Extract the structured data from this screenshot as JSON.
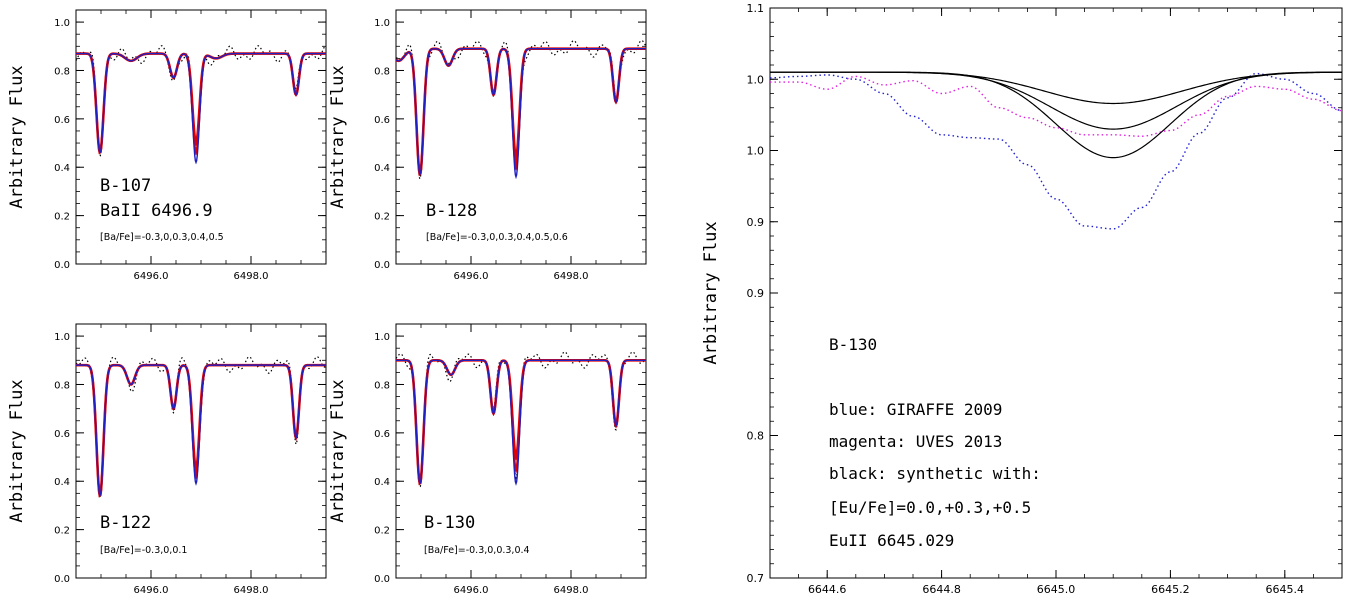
{
  "chart_data": [
    {
      "type": "line",
      "panel": "B-107",
      "ylabel": "Arbitrary Flux",
      "xlim": [
        6494.5,
        6499.5
      ],
      "ylim": [
        0.0,
        1.05
      ],
      "xticks": [
        "6496.0",
        "6498.0"
      ],
      "yticks": [
        "0.0",
        "0.2",
        "0.4",
        "0.6",
        "0.8",
        "1.0"
      ],
      "annotations": [
        "B-107",
        "BaII 6496.9",
        "[Ba/Fe]=-0.3,0,0.3,0.4,0.5"
      ],
      "continuum": 0.87,
      "lines": [
        {
          "center": 6494.98,
          "depth": 0.41,
          "sigma": 0.07
        },
        {
          "center": 6495.6,
          "depth": 0.03,
          "sigma": 0.12
        },
        {
          "center": 6496.45,
          "depth": 0.1,
          "sigma": 0.07
        },
        {
          "center": 6496.9,
          "depth_min": 0.37,
          "depth_max": 0.45,
          "sigma": 0.07
        },
        {
          "center": 6497.3,
          "depth": 0.02,
          "sigma": 0.12
        },
        {
          "center": 6498.9,
          "depth": 0.17,
          "sigma": 0.06
        }
      ],
      "series": [
        {
          "name": "observed",
          "color": "#000000",
          "style": "dotted"
        },
        {
          "name": "synthetic",
          "color": "#e00000",
          "style": "solid"
        },
        {
          "name": "synthetic",
          "color": "#2020c0",
          "style": "solid"
        }
      ]
    },
    {
      "type": "line",
      "panel": "B-128",
      "ylabel": "Arbitrary Flux",
      "xlim": [
        6494.5,
        6499.5
      ],
      "ylim": [
        0.0,
        1.05
      ],
      "xticks": [
        "6496.0",
        "6498.0"
      ],
      "yticks": [
        "0.0",
        "0.2",
        "0.4",
        "0.6",
        "0.8",
        "1.0"
      ],
      "annotations": [
        "B-128",
        "[Ba/Fe]=-0.3,0,0.3,0.4,0.5,0.6"
      ],
      "continuum": 0.89,
      "lines": [
        {
          "center": 6494.55,
          "depth": 0.05,
          "sigma": 0.12
        },
        {
          "center": 6494.98,
          "depth": 0.52,
          "sigma": 0.07
        },
        {
          "center": 6495.55,
          "depth": 0.07,
          "sigma": 0.08
        },
        {
          "center": 6496.45,
          "depth": 0.19,
          "sigma": 0.06
        },
        {
          "center": 6496.9,
          "depth_min": 0.45,
          "depth_max": 0.53,
          "sigma": 0.07
        },
        {
          "center": 6498.9,
          "depth": 0.22,
          "sigma": 0.06
        }
      ],
      "series": [
        {
          "name": "observed",
          "color": "#000000",
          "style": "dotted"
        },
        {
          "name": "synthetic",
          "color": "#e00000",
          "style": "solid"
        },
        {
          "name": "synthetic",
          "color": "#2020c0",
          "style": "solid"
        }
      ]
    },
    {
      "type": "line",
      "panel": "B-122",
      "ylabel": "Arbitrary Flux",
      "xlim": [
        6494.5,
        6499.5
      ],
      "ylim": [
        0.0,
        1.05
      ],
      "xticks": [
        "6496.0",
        "6498.0"
      ],
      "yticks": [
        "0.0",
        "0.2",
        "0.4",
        "0.6",
        "0.8",
        "1.0"
      ],
      "annotations": [
        "B-122",
        "[Ba/Fe]=-0.3,0,0.1"
      ],
      "continuum": 0.88,
      "lines": [
        {
          "center": 6494.98,
          "depth": 0.54,
          "sigma": 0.07
        },
        {
          "center": 6495.6,
          "depth": 0.08,
          "sigma": 0.08
        },
        {
          "center": 6496.45,
          "depth": 0.18,
          "sigma": 0.06
        },
        {
          "center": 6496.9,
          "depth_min": 0.43,
          "depth_max": 0.49,
          "sigma": 0.07
        },
        {
          "center": 6498.9,
          "depth": 0.3,
          "sigma": 0.06
        }
      ],
      "series": [
        {
          "name": "observed",
          "color": "#000000",
          "style": "dotted"
        },
        {
          "name": "synthetic",
          "color": "#e00000",
          "style": "solid"
        },
        {
          "name": "synthetic",
          "color": "#2020c0",
          "style": "solid"
        }
      ]
    },
    {
      "type": "line",
      "panel": "B-130",
      "ylabel": "Arbitrary Flux",
      "xlim": [
        6494.5,
        6499.5
      ],
      "ylim": [
        0.0,
        1.05
      ],
      "xticks": [
        "6496.0",
        "6498.0"
      ],
      "yticks": [
        "0.0",
        "0.2",
        "0.4",
        "0.6",
        "0.8",
        "1.0"
      ],
      "annotations": [
        "B-130",
        "[Ba/Fe]=-0.3,0,0.3,0.4"
      ],
      "continuum": 0.9,
      "lines": [
        {
          "center": 6494.98,
          "depth": 0.51,
          "sigma": 0.07
        },
        {
          "center": 6495.6,
          "depth": 0.06,
          "sigma": 0.08
        },
        {
          "center": 6496.45,
          "depth": 0.22,
          "sigma": 0.06
        },
        {
          "center": 6496.9,
          "depth_min": 0.4,
          "depth_max": 0.51,
          "sigma": 0.07
        },
        {
          "center": 6498.9,
          "depth": 0.27,
          "sigma": 0.06
        }
      ],
      "series": [
        {
          "name": "observed",
          "color": "#000000",
          "style": "dotted"
        },
        {
          "name": "synthetic",
          "color": "#e00000",
          "style": "solid"
        },
        {
          "name": "synthetic",
          "color": "#2020c0",
          "style": "solid"
        }
      ]
    },
    {
      "type": "line",
      "panel": "B-130",
      "ylabel": "Arbitrary Flux",
      "xlim": [
        6644.5,
        6645.5
      ],
      "ylim": [
        0.7,
        1.1
      ],
      "xticks": [
        "6644.6",
        "6644.8",
        "6645.0",
        "6645.2",
        "6645.4"
      ],
      "yticks": [
        {
          "value": 0.7,
          "label": "0.7"
        },
        {
          "value": 0.8,
          "label": "0.8"
        },
        {
          "value": 0.9,
          "label": "0.9"
        },
        {
          "value": 0.95,
          "label": "0.9"
        },
        {
          "value": 1.0,
          "label": "1.0"
        },
        {
          "value": 1.05,
          "label": "1.0"
        },
        {
          "value": 1.1,
          "label": "1.1"
        }
      ],
      "annotations": [
        "B-130",
        "blue: GIRAFFE 2009",
        "magenta: UVES 2013",
        "black: synthetic with:",
        "[Eu/Fe]=0.0,+0.3,+0.5",
        "EuII 6645.029"
      ],
      "series": [
        {
          "name": "GIRAFFE 2009",
          "color": "#2020d0",
          "style": "dotted",
          "x": [
            6644.5,
            6644.55,
            6644.6,
            6644.65,
            6644.7,
            6644.75,
            6644.8,
            6644.85,
            6644.9,
            6644.95,
            6645.0,
            6645.05,
            6645.1,
            6645.15,
            6645.2,
            6645.25,
            6645.3,
            6645.35,
            6645.4,
            6645.45,
            6645.5
          ],
          "y": [
            1.051,
            1.052,
            1.053,
            1.05,
            1.04,
            1.024,
            1.011,
            1.009,
            1.008,
            0.99,
            0.966,
            0.947,
            0.945,
            0.96,
            0.985,
            1.012,
            1.037,
            1.054,
            1.05,
            1.04,
            1.028
          ]
        },
        {
          "name": "UVES 2013",
          "color": "#e020e0",
          "style": "dotted",
          "x": [
            6644.5,
            6644.55,
            6644.6,
            6644.65,
            6644.7,
            6644.75,
            6644.8,
            6644.85,
            6644.9,
            6644.95,
            6645.0,
            6645.05,
            6645.1,
            6645.15,
            6645.2,
            6645.25,
            6645.3,
            6645.35,
            6645.4,
            6645.45,
            6645.5
          ],
          "y": [
            1.048,
            1.048,
            1.043,
            1.052,
            1.046,
            1.049,
            1.04,
            1.045,
            1.03,
            1.023,
            1.016,
            1.011,
            1.011,
            1.01,
            1.014,
            1.025,
            1.038,
            1.045,
            1.043,
            1.036,
            1.028
          ]
        },
        {
          "name": "[Eu/Fe]=0.0",
          "color": "#000000",
          "style": "solid",
          "center": 6645.1,
          "continuum": 1.055,
          "depth": 0.022,
          "sigma": 0.12
        },
        {
          "name": "[Eu/Fe]=+0.3",
          "color": "#000000",
          "style": "solid",
          "center": 6645.1,
          "continuum": 1.055,
          "depth": 0.04,
          "sigma": 0.11
        },
        {
          "name": "[Eu/Fe]=+0.5",
          "color": "#000000",
          "style": "solid",
          "center": 6645.1,
          "continuum": 1.055,
          "depth": 0.06,
          "sigma": 0.1
        }
      ]
    }
  ]
}
